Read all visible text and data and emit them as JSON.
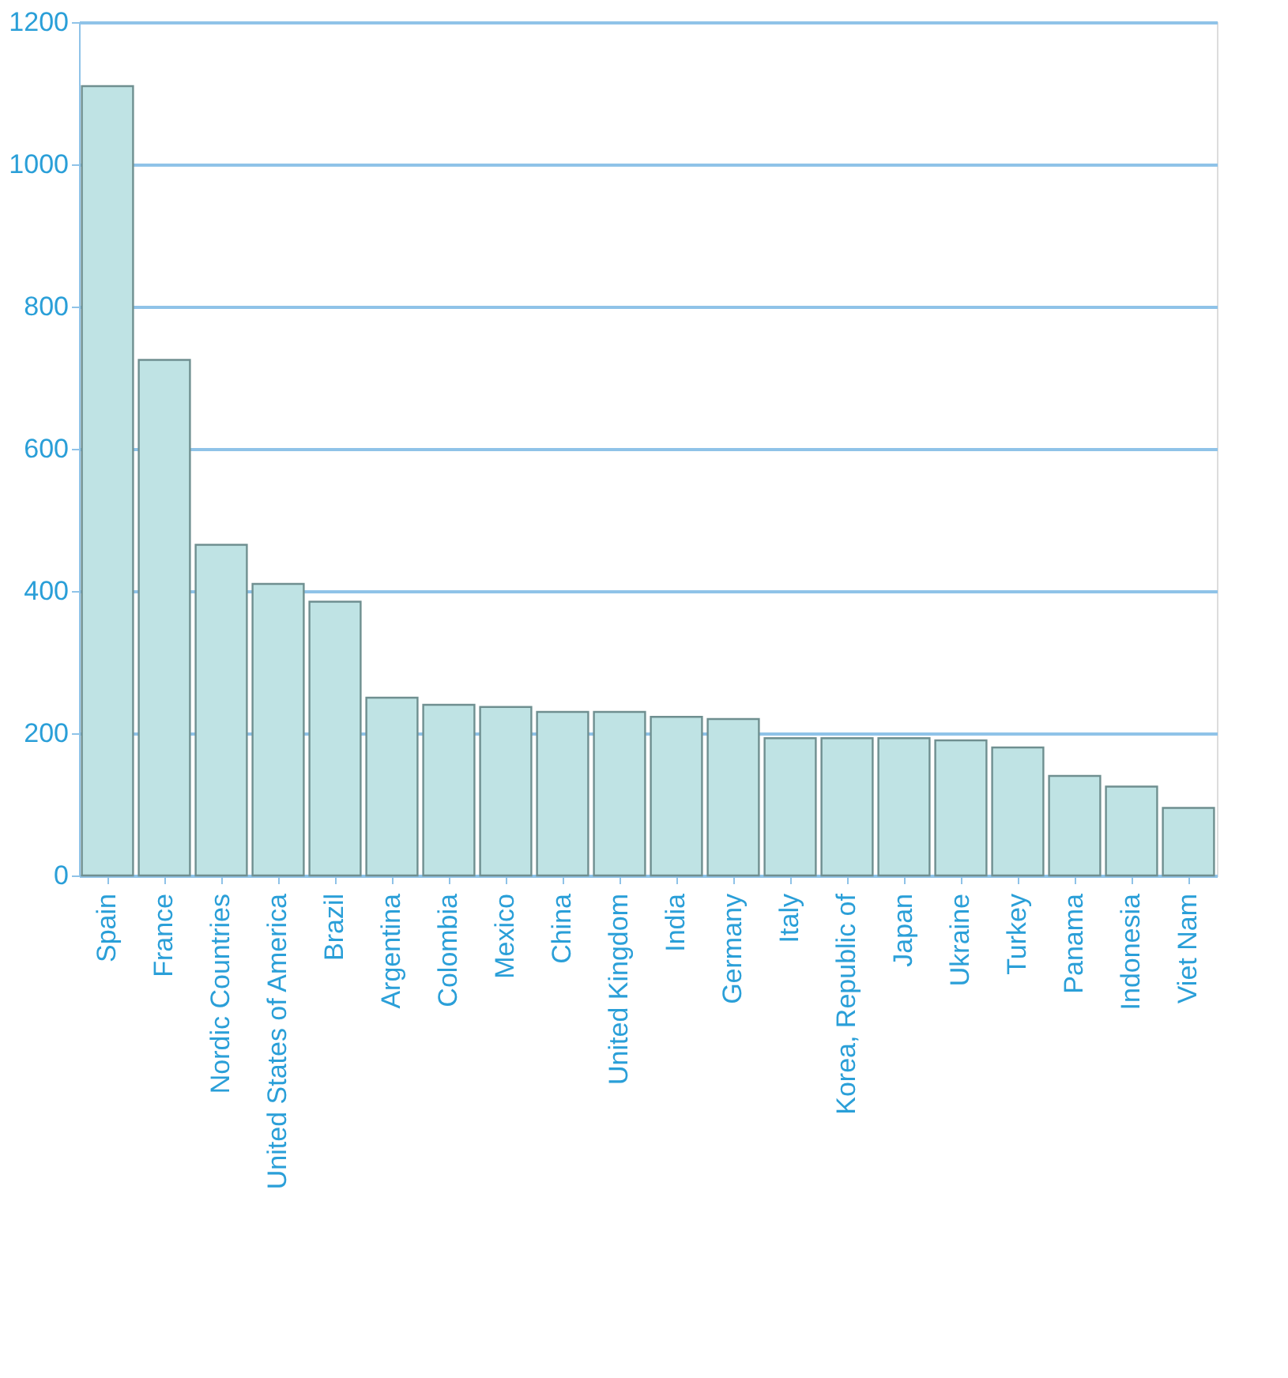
{
  "chart_data": {
    "type": "bar",
    "categories": [
      "Spain",
      "France",
      "Nordic Countries",
      "United States of America",
      "Brazil",
      "Argentina",
      "Colombia",
      "Mexico",
      "China",
      "United Kingdom",
      "India",
      "Germany",
      "Italy",
      "Korea, Republic of",
      "Japan",
      "Ukraine",
      "Turkey",
      "Panama",
      "Indonesia",
      "Viet Nam"
    ],
    "values": [
      1110,
      725,
      465,
      410,
      385,
      250,
      240,
      237,
      230,
      230,
      223,
      220,
      193,
      193,
      193,
      190,
      180,
      140,
      125,
      95
    ],
    "color": "#bfe3e4",
    "ylim": [
      0,
      1200
    ],
    "yticks": [
      0,
      200,
      400,
      600,
      800,
      1000,
      1200
    ],
    "grid": "y"
  }
}
